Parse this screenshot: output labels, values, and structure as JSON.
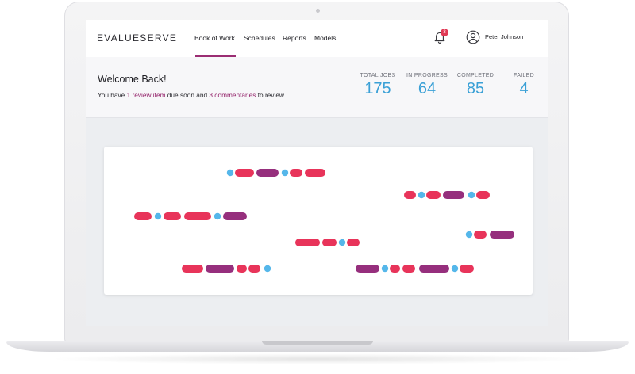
{
  "header": {
    "brand": "EVALUESERVE",
    "nav": [
      "Book of Work",
      "Schedules",
      "Reports",
      "Models"
    ],
    "active_nav": "Book of Work",
    "notification_count": "3",
    "user_name": "Peter Johnson"
  },
  "welcome": {
    "title": "Welcome Back!",
    "msg_before": "You have ",
    "review_link": "1 review item",
    "msg_middle": " due soon and ",
    "commentary_link": "3 commentaries",
    "msg_after": " to review."
  },
  "stats": [
    {
      "label": "TOTAL JOBS",
      "value": "175"
    },
    {
      "label": "IN PROGRESS",
      "value": "64"
    },
    {
      "label": "COMPLETED",
      "value": "85"
    },
    {
      "label": "FAILED",
      "value": "4"
    }
  ],
  "colors": {
    "brand_accent": "#9b2d73",
    "stat_blue": "#3aa0d6",
    "badge_red": "#e03a55",
    "pill_red": "#e8345a",
    "pill_purple": "#962f7d",
    "dot_blue": "#55b7ea"
  },
  "icons": {
    "bell": "bell-icon",
    "user": "user-circle-icon"
  }
}
